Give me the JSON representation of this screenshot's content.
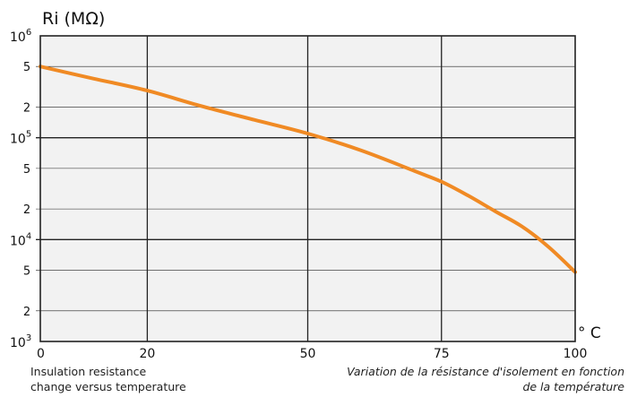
{
  "chart_data": {
    "type": "line",
    "ylabel": "Ri (MΩ)",
    "xunit": "° C",
    "xscale": "linear",
    "yscale": "log",
    "xlim": [
      0,
      100
    ],
    "ylim": [
      1000,
      1000000
    ],
    "grid": true,
    "xticks": [
      {
        "value": 0,
        "label": "0"
      },
      {
        "value": 20,
        "label": "20"
      },
      {
        "value": 50,
        "label": "50"
      },
      {
        "value": 75,
        "label": "75"
      },
      {
        "value": 100,
        "label": "100"
      }
    ],
    "ydecades": [
      {
        "value": 1000,
        "base": "10",
        "exp": "3"
      },
      {
        "value": 10000,
        "base": "10",
        "exp": "4"
      },
      {
        "value": 100000,
        "base": "10",
        "exp": "5"
      },
      {
        "value": 1000000,
        "base": "10",
        "exp": "6"
      }
    ],
    "yminor": [
      {
        "value": 2000,
        "label": "2"
      },
      {
        "value": 5000,
        "label": "5"
      },
      {
        "value": 20000,
        "label": "2"
      },
      {
        "value": 50000,
        "label": "5"
      },
      {
        "value": 200000,
        "label": "2"
      },
      {
        "value": 500000,
        "label": "5"
      }
    ],
    "series": [
      {
        "color": "#f08a24",
        "x": [
          0,
          10,
          20,
          30,
          40,
          50,
          60,
          70,
          75,
          80,
          85,
          90,
          95,
          100
        ],
        "y": [
          500000,
          380000,
          290000,
          205000,
          150000,
          110000,
          75000,
          47000,
          37000,
          27000,
          19000,
          13500,
          8500,
          4800
        ]
      }
    ],
    "gridcolor": "#222222"
  },
  "captions": {
    "en_line1": "Insulation resistance",
    "en_line2": "change versus temperature",
    "fr_line1": "Variation de la résistance d'isolement en fonction",
    "fr_line2": "de la température"
  }
}
